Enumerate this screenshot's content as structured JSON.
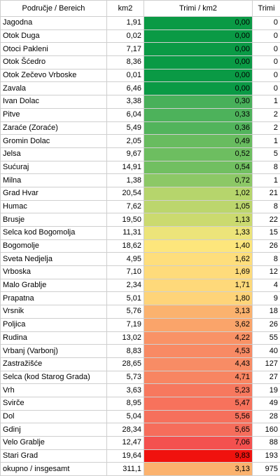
{
  "table": {
    "headers": {
      "name": "Područje / Bereich",
      "km2": "km2",
      "density": "Trimi / km2",
      "trimi": "Trimi"
    },
    "rows": [
      {
        "name": "Jagodna",
        "km2": "1,91",
        "density": "0,00",
        "trimi": "0",
        "color": "#0a9a45"
      },
      {
        "name": "Otok Duga",
        "km2": "0,02",
        "density": "0,00",
        "trimi": "0",
        "color": "#0a9a45"
      },
      {
        "name": "Otoci Pakleni",
        "km2": "7,17",
        "density": "0,00",
        "trimi": "0",
        "color": "#0a9a45"
      },
      {
        "name": "Otok Šćedro",
        "km2": "8,36",
        "density": "0,00",
        "trimi": "0",
        "color": "#0a9a45"
      },
      {
        "name": "Otok Zečevo Vrboske",
        "km2": "0,01",
        "density": "0,00",
        "trimi": "0",
        "color": "#0a9a45"
      },
      {
        "name": "Zavala",
        "km2": "6,46",
        "density": "0,00",
        "trimi": "0",
        "color": "#0a9a45"
      },
      {
        "name": "Ivan Dolac",
        "km2": "3,38",
        "density": "0,30",
        "trimi": "1",
        "color": "#48b05a"
      },
      {
        "name": "Pitve",
        "km2": "6,04",
        "density": "0,33",
        "trimi": "2",
        "color": "#4db25b"
      },
      {
        "name": "Zaraće (Zoraće)",
        "km2": "5,49",
        "density": "0,36",
        "trimi": "2",
        "color": "#52b45c"
      },
      {
        "name": "Gromin Dolac",
        "km2": "2,05",
        "density": "0,49",
        "trimi": "1",
        "color": "#68bc5f"
      },
      {
        "name": "Jelsa",
        "km2": "9,67",
        "density": "0,52",
        "trimi": "5",
        "color": "#6dbe60"
      },
      {
        "name": "Sućuraj",
        "km2": "14,91",
        "density": "0,54",
        "trimi": "8",
        "color": "#71bf61"
      },
      {
        "name": "Milna",
        "km2": "1,38",
        "density": "0,72",
        "trimi": "1",
        "color": "#8cc866"
      },
      {
        "name": "Grad Hvar",
        "km2": "20,54",
        "density": "1,02",
        "trimi": "21",
        "color": "#b6d56c"
      },
      {
        "name": "Humac",
        "km2": "7,62",
        "density": "1,05",
        "trimi": "8",
        "color": "#bcd66d"
      },
      {
        "name": "Brusje",
        "km2": "19,50",
        "density": "1,13",
        "trimi": "22",
        "color": "#cbda6f"
      },
      {
        "name": "Selca kod Bogomolja",
        "km2": "11,31",
        "density": "1,33",
        "trimi": "15",
        "color": "#ece47a"
      },
      {
        "name": "Bogomolje",
        "km2": "18,62",
        "density": "1,40",
        "trimi": "26",
        "color": "#fde67c"
      },
      {
        "name": "Sveta Nedjelja",
        "km2": "4,95",
        "density": "1,62",
        "trimi": "8",
        "color": "#fede7c"
      },
      {
        "name": "Vrboska",
        "km2": "7,10",
        "density": "1,69",
        "trimi": "12",
        "color": "#fedb7b"
      },
      {
        "name": "Malo Grablje",
        "km2": "2,34",
        "density": "1,71",
        "trimi": "4",
        "color": "#fed97a"
      },
      {
        "name": "Prapatna",
        "km2": "5,01",
        "density": "1,80",
        "trimi": "9",
        "color": "#fed479"
      },
      {
        "name": "Vrsnik",
        "km2": "5,76",
        "density": "3,13",
        "trimi": "18",
        "color": "#fbb26e"
      },
      {
        "name": "Poljica",
        "km2": "7,19",
        "density": "3,62",
        "trimi": "26",
        "color": "#faa46a"
      },
      {
        "name": "Rudina",
        "km2": "13,02",
        "density": "4,22",
        "trimi": "55",
        "color": "#f99266"
      },
      {
        "name": "Vrbanj (Varbonj)",
        "km2": "8,83",
        "density": "4,53",
        "trimi": "40",
        "color": "#f88a64"
      },
      {
        "name": "Zastražišće",
        "km2": "28,65",
        "density": "4,43",
        "trimi": "127",
        "color": "#f88c65"
      },
      {
        "name": "Selca (kod Starog Grada)",
        "km2": "5,73",
        "density": "4,71",
        "trimi": "27",
        "color": "#f88562"
      },
      {
        "name": "Vrh",
        "km2": "3,63",
        "density": "5,23",
        "trimi": "19",
        "color": "#f7785e"
      },
      {
        "name": "Svirče",
        "km2": "8,95",
        "density": "5,47",
        "trimi": "49",
        "color": "#f7725c"
      },
      {
        "name": "Dol",
        "km2": "5,04",
        "density": "5,56",
        "trimi": "28",
        "color": "#f6705c"
      },
      {
        "name": "Gdinj",
        "km2": "28,34",
        "density": "5,65",
        "trimi": "160",
        "color": "#f66d5b"
      },
      {
        "name": "Velo Grablje",
        "km2": "12,47",
        "density": "7,06",
        "trimi": "88",
        "color": "#f4514f"
      },
      {
        "name": "Stari Grad",
        "km2": "19,64",
        "density": "9,83",
        "trimi": "193",
        "color": "#f0120e"
      }
    ],
    "total": {
      "name": "okupno / insgesamt",
      "km2": "311,1",
      "density": "3,13",
      "trimi": "975",
      "color": "#fbb26e"
    }
  }
}
